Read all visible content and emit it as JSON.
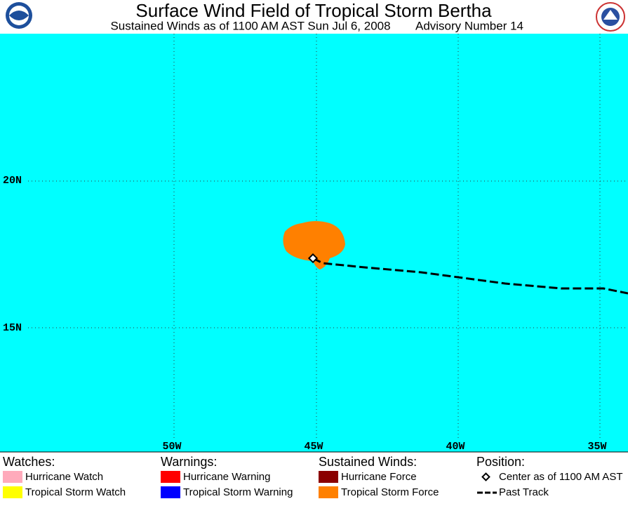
{
  "header": {
    "title": "Surface Wind Field of Tropical Storm Bertha",
    "subtitle": "Sustained Winds as of 1100 AM AST Sun Jul 6, 2008",
    "advisory": "Advisory Number 14"
  },
  "map": {
    "lon_labels": [
      "50W",
      "45W",
      "40W",
      "35W"
    ],
    "lat_labels": [
      "20N",
      "15N"
    ]
  },
  "legend": [
    {
      "heading": "Watches:",
      "items": [
        "Hurricane Watch",
        "Tropical Storm Watch"
      ]
    },
    {
      "heading": "Warnings:",
      "items": [
        "Hurricane Warning",
        "Tropical Storm Warning"
      ]
    },
    {
      "heading": "Sustained Winds:",
      "items": [
        "Hurricane Force",
        "Tropical Storm Force"
      ]
    },
    {
      "heading": "Position:",
      "items": [
        "Center as of 1100 AM AST",
        "Past Track"
      ]
    }
  ]
}
